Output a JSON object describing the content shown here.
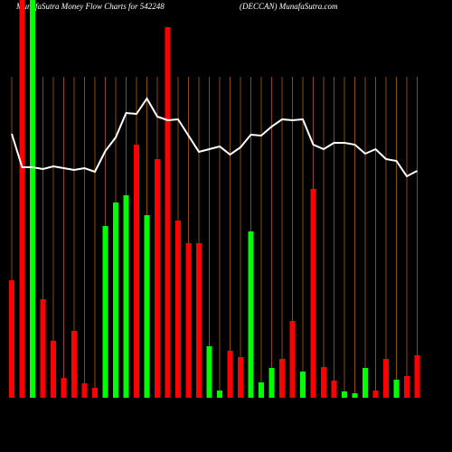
{
  "chart_data": {
    "type": "bar",
    "title": "MunafaSutra  Money Flow  Charts for 542248",
    "subtitle": "(DECCAN) MunafaSutra.com",
    "series": [
      {
        "values": [
          130,
          440,
          440,
          109,
          63,
          22,
          74,
          16,
          11,
          190,
          216,
          224,
          280,
          202,
          264,
          410,
          196,
          171,
          171,
          57,
          8,
          52,
          45,
          184,
          17,
          33,
          43,
          85,
          29,
          231,
          34,
          19,
          7,
          5,
          33,
          8,
          43,
          20,
          24,
          47
        ],
        "colors": [
          "#ff0000",
          "#ff0000",
          "#00ff00",
          "#ff0000",
          "#ff0000",
          "#ff0000",
          "#ff0000",
          "#ff0000",
          "#ff0000",
          "#00ff00",
          "#00ff00",
          "#00ff00",
          "#ff0000",
          "#00ff00",
          "#ff0000",
          "#ff0000",
          "#ff0000",
          "#ff0000",
          "#ff0000",
          "#00ff00",
          "#00ff00",
          "#ff0000",
          "#ff0000",
          "#00ff00",
          "#00ff00",
          "#00ff00",
          "#ff0000",
          "#ff0000",
          "#00ff00",
          "#ff0000",
          "#ff0000",
          "#ff0000",
          "#00ff00",
          "#00ff00",
          "#00ff00",
          "#ff0000",
          "#ff0000",
          "#00ff00",
          "#ff0000",
          "#ff0000"
        ]
      },
      {
        "type": "line",
        "color": "#ffffff",
        "values": [
          292,
          255,
          255,
          253,
          256,
          254,
          252,
          254,
          250,
          273,
          288,
          315,
          314,
          331,
          311,
          307,
          308,
          290,
          272,
          275,
          278,
          269,
          277,
          291,
          290,
          300,
          308,
          307,
          308,
          280,
          275,
          282,
          282,
          280,
          270,
          275,
          264,
          262,
          245,
          251
        ]
      }
    ]
  }
}
